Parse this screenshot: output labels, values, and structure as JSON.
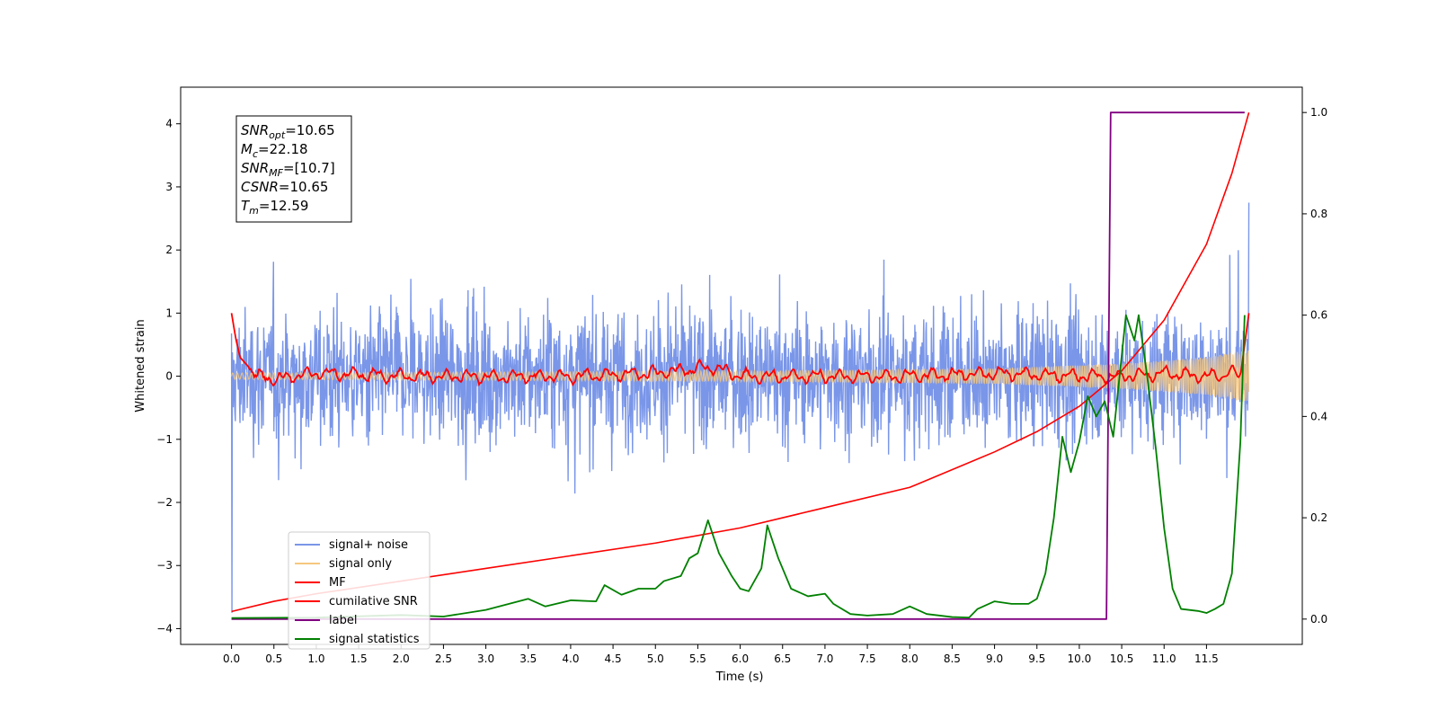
{
  "chart_data": {
    "type": "line",
    "xlabel": "Time (s)",
    "ylabel": "Whitened strain",
    "xlim": [
      -0.6,
      12.63
    ],
    "ylim": [
      -4.25,
      4.58
    ],
    "ylim_right": [
      -0.05,
      1.05
    ],
    "grid": false,
    "legend_placement": "lower-left",
    "x_ticks": [
      0.0,
      0.5,
      1.0,
      1.5,
      2.0,
      2.5,
      3.0,
      3.5,
      4.0,
      4.5,
      5.0,
      5.5,
      6.0,
      6.5,
      7.0,
      7.5,
      8.0,
      8.5,
      9.0,
      9.5,
      10.0,
      10.5,
      11.0,
      11.5
    ],
    "x_tick_labels": [
      "0.0",
      "0.5",
      "1.0",
      "1.5",
      "2.0",
      "2.5",
      "3.0",
      "3.5",
      "4.0",
      "4.5",
      "5.0",
      "5.5",
      "6.0",
      "6.5",
      "7.0",
      "7.5",
      "8.0",
      "8.5",
      "9.0",
      "9.5",
      "10.0",
      "10.5",
      "11.0",
      "11.5"
    ],
    "y_ticks": [
      4,
      3,
      2,
      1,
      0,
      -1,
      -2,
      -3,
      -4
    ],
    "y_tick_labels": [
      "4",
      "3",
      "2",
      "1",
      "0",
      "−1",
      "−2",
      "−3",
      "−4"
    ],
    "y_right_ticks": [
      1.0,
      0.8,
      0.6,
      0.4,
      0.2,
      0.0
    ],
    "y_right_tick_labels": [
      "1.0",
      "0.8",
      "0.6",
      "0.4",
      "0.2",
      "0.0"
    ],
    "annotation_lines": [
      {
        "main": "SNR",
        "sub": "opt",
        "rest": "=10.65"
      },
      {
        "main": "M",
        "sub": "c",
        "rest": "=22.18"
      },
      {
        "main": "SNR",
        "sub": "MF",
        "rest": "=[10.7]"
      },
      {
        "main": "CSNR",
        "sub": "",
        "rest": "=10.65"
      },
      {
        "main": "T",
        "sub": "m",
        "rest": "=12.59"
      }
    ],
    "series": [
      {
        "name": "signal+ noise",
        "color": "#7a96e8",
        "axis": "left",
        "x_range": [
          0.0,
          12.0
        ],
        "envelope_typical": [
          -1.5,
          1.5
        ],
        "extremes": {
          "min": -3.75,
          "max": 2.75
        }
      },
      {
        "name": "signal only",
        "color": "#f5c77e",
        "axis": "left",
        "x_range": [
          0.0,
          12.0
        ],
        "amplitude": [
          {
            "x": 0.0,
            "a": 0.05
          },
          {
            "x": 6.0,
            "a": 0.08
          },
          {
            "x": 9.0,
            "a": 0.12
          },
          {
            "x": 10.5,
            "a": 0.2
          },
          {
            "x": 11.5,
            "a": 0.3
          },
          {
            "x": 12.0,
            "a": 0.42
          }
        ]
      },
      {
        "name": "MF",
        "color": "#ff0000",
        "axis": "left",
        "points": [
          {
            "x": 0.0,
            "y": 1.0
          },
          {
            "x": 0.05,
            "y": 0.6
          },
          {
            "x": 0.1,
            "y": 0.3
          },
          {
            "x": 0.2,
            "y": 0.15
          },
          {
            "x": 0.3,
            "y": 0.0
          },
          {
            "x": 0.5,
            "y": -0.05
          },
          {
            "x": 1.0,
            "y": 0.05
          },
          {
            "x": 2.0,
            "y": 0.0
          },
          {
            "x": 3.0,
            "y": 0.0
          },
          {
            "x": 4.0,
            "y": 0.0
          },
          {
            "x": 5.0,
            "y": 0.05
          },
          {
            "x": 5.7,
            "y": 0.15
          },
          {
            "x": 6.0,
            "y": 0.0
          },
          {
            "x": 7.0,
            "y": 0.0
          },
          {
            "x": 8.0,
            "y": 0.0
          },
          {
            "x": 9.0,
            "y": 0.05
          },
          {
            "x": 10.0,
            "y": 0.0
          },
          {
            "x": 10.5,
            "y": 0.0
          },
          {
            "x": 11.0,
            "y": 0.05
          },
          {
            "x": 11.5,
            "y": 0.0
          },
          {
            "x": 11.8,
            "y": 0.05
          },
          {
            "x": 11.9,
            "y": 0.0
          },
          {
            "x": 11.95,
            "y": 0.5
          },
          {
            "x": 12.0,
            "y": 1.0
          }
        ]
      },
      {
        "name": "cumilative SNR",
        "color": "#ff0000",
        "axis": "right",
        "points": [
          {
            "x": 0.0,
            "y": 0.015
          },
          {
            "x": 0.5,
            "y": 0.035
          },
          {
            "x": 1.0,
            "y": 0.05
          },
          {
            "x": 2.0,
            "y": 0.075
          },
          {
            "x": 3.0,
            "y": 0.1
          },
          {
            "x": 4.0,
            "y": 0.125
          },
          {
            "x": 5.0,
            "y": 0.15
          },
          {
            "x": 6.0,
            "y": 0.18
          },
          {
            "x": 7.0,
            "y": 0.22
          },
          {
            "x": 8.0,
            "y": 0.26
          },
          {
            "x": 9.0,
            "y": 0.33
          },
          {
            "x": 9.5,
            "y": 0.37
          },
          {
            "x": 10.0,
            "y": 0.42
          },
          {
            "x": 10.5,
            "y": 0.49
          },
          {
            "x": 11.0,
            "y": 0.59
          },
          {
            "x": 11.5,
            "y": 0.74
          },
          {
            "x": 11.8,
            "y": 0.88
          },
          {
            "x": 12.0,
            "y": 1.0
          }
        ]
      },
      {
        "name": "label",
        "color": "#800080",
        "axis": "right",
        "points": [
          {
            "x": 0.0,
            "y": 0.0
          },
          {
            "x": 10.32,
            "y": 0.0
          },
          {
            "x": 10.37,
            "y": 1.0
          },
          {
            "x": 11.95,
            "y": 1.0
          }
        ]
      },
      {
        "name": "signal statistics",
        "color": "#008000",
        "axis": "right",
        "points": [
          {
            "x": 0.0,
            "y": 0.002
          },
          {
            "x": 1.0,
            "y": 0.003
          },
          {
            "x": 2.0,
            "y": 0.008
          },
          {
            "x": 2.5,
            "y": 0.005
          },
          {
            "x": 3.0,
            "y": 0.018
          },
          {
            "x": 3.5,
            "y": 0.04
          },
          {
            "x": 3.7,
            "y": 0.025
          },
          {
            "x": 4.0,
            "y": 0.037
          },
          {
            "x": 4.3,
            "y": 0.035
          },
          {
            "x": 4.4,
            "y": 0.067
          },
          {
            "x": 4.6,
            "y": 0.048
          },
          {
            "x": 4.8,
            "y": 0.06
          },
          {
            "x": 5.0,
            "y": 0.06
          },
          {
            "x": 5.1,
            "y": 0.075
          },
          {
            "x": 5.3,
            "y": 0.085
          },
          {
            "x": 5.4,
            "y": 0.12
          },
          {
            "x": 5.5,
            "y": 0.13
          },
          {
            "x": 5.62,
            "y": 0.195
          },
          {
            "x": 5.75,
            "y": 0.13
          },
          {
            "x": 5.9,
            "y": 0.085
          },
          {
            "x": 6.0,
            "y": 0.06
          },
          {
            "x": 6.1,
            "y": 0.055
          },
          {
            "x": 6.25,
            "y": 0.1
          },
          {
            "x": 6.32,
            "y": 0.185
          },
          {
            "x": 6.45,
            "y": 0.12
          },
          {
            "x": 6.6,
            "y": 0.06
          },
          {
            "x": 6.8,
            "y": 0.045
          },
          {
            "x": 7.0,
            "y": 0.05
          },
          {
            "x": 7.1,
            "y": 0.03
          },
          {
            "x": 7.3,
            "y": 0.01
          },
          {
            "x": 7.5,
            "y": 0.007
          },
          {
            "x": 7.8,
            "y": 0.01
          },
          {
            "x": 8.0,
            "y": 0.025
          },
          {
            "x": 8.2,
            "y": 0.01
          },
          {
            "x": 8.5,
            "y": 0.004
          },
          {
            "x": 8.7,
            "y": 0.003
          },
          {
            "x": 8.8,
            "y": 0.02
          },
          {
            "x": 9.0,
            "y": 0.035
          },
          {
            "x": 9.2,
            "y": 0.03
          },
          {
            "x": 9.4,
            "y": 0.03
          },
          {
            "x": 9.5,
            "y": 0.04
          },
          {
            "x": 9.6,
            "y": 0.09
          },
          {
            "x": 9.7,
            "y": 0.2
          },
          {
            "x": 9.8,
            "y": 0.36
          },
          {
            "x": 9.9,
            "y": 0.29
          },
          {
            "x": 10.0,
            "y": 0.35
          },
          {
            "x": 10.1,
            "y": 0.44
          },
          {
            "x": 10.2,
            "y": 0.4
          },
          {
            "x": 10.3,
            "y": 0.43
          },
          {
            "x": 10.4,
            "y": 0.36
          },
          {
            "x": 10.5,
            "y": 0.52
          },
          {
            "x": 10.55,
            "y": 0.6
          },
          {
            "x": 10.65,
            "y": 0.55
          },
          {
            "x": 10.7,
            "y": 0.6
          },
          {
            "x": 10.8,
            "y": 0.48
          },
          {
            "x": 10.9,
            "y": 0.34
          },
          {
            "x": 11.0,
            "y": 0.18
          },
          {
            "x": 11.1,
            "y": 0.06
          },
          {
            "x": 11.2,
            "y": 0.02
          },
          {
            "x": 11.4,
            "y": 0.016
          },
          {
            "x": 11.5,
            "y": 0.012
          },
          {
            "x": 11.6,
            "y": 0.02
          },
          {
            "x": 11.7,
            "y": 0.03
          },
          {
            "x": 11.8,
            "y": 0.09
          },
          {
            "x": 11.9,
            "y": 0.35
          },
          {
            "x": 11.95,
            "y": 0.6
          }
        ]
      }
    ]
  }
}
